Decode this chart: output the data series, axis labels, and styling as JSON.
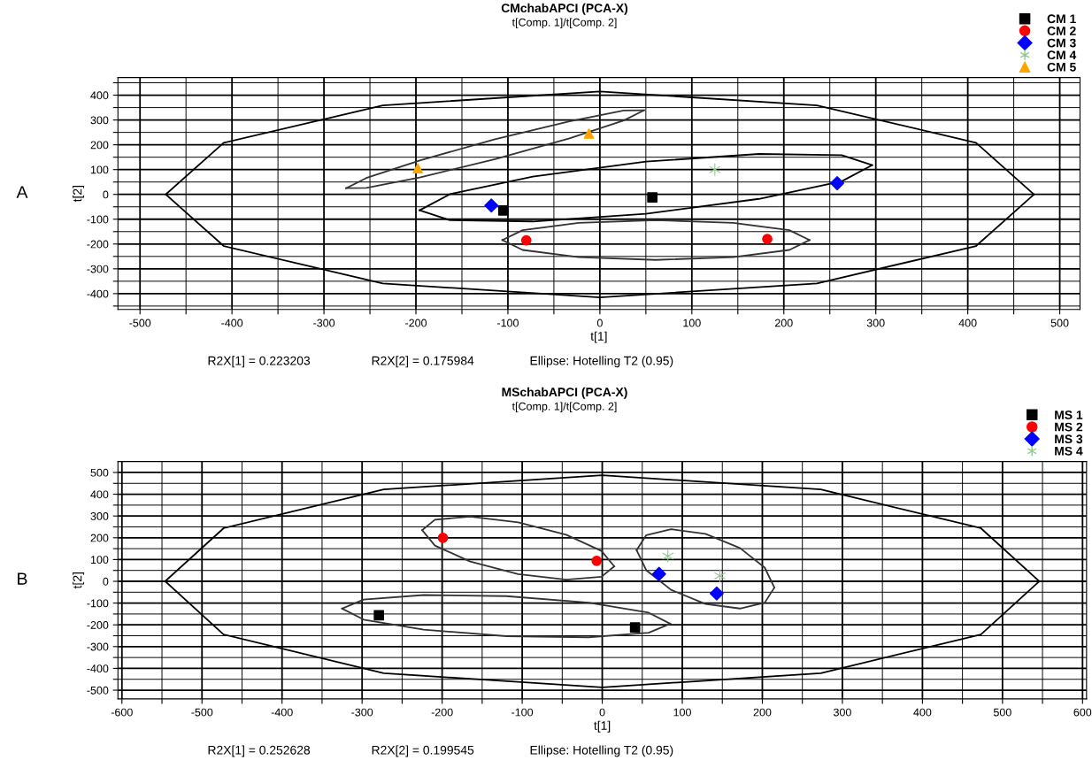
{
  "chart_data": [
    {
      "type": "scatter",
      "title": "CMchabAPCI (PCA-X)",
      "subtitle": "t[Comp. 1]/t[Comp. 2]",
      "xlabel": "t[1]",
      "ylabel": "t[2]",
      "annotations": [
        "A",
        "R2X[1] = 0.223203",
        "R2X[2] = 0.175984",
        "Ellipse: Hotelling T2 (0.95)"
      ],
      "xlim": [
        -524,
        522
      ],
      "ylim": [
        -464,
        471
      ],
      "xticks": [
        -500,
        -400,
        -300,
        -200,
        -100,
        0,
        100,
        200,
        300,
        400,
        500,
        {
          "value": -450,
          "label": null
        },
        {
          "value": -350,
          "label": null
        },
        {
          "value": -250,
          "label": null
        },
        {
          "value": -150,
          "label": null
        },
        {
          "value": -50,
          "label": null
        },
        {
          "value": 50,
          "label": null
        },
        {
          "value": 150,
          "label": null
        },
        {
          "value": 250,
          "label": null
        },
        {
          "value": 350,
          "label": null
        },
        {
          "value": 450,
          "label": null
        }
      ],
      "yticks": [
        -400,
        -300,
        -200,
        -100,
        0,
        100,
        200,
        300,
        400,
        {
          "value": -450,
          "label": null
        },
        {
          "value": -350,
          "label": null
        },
        {
          "value": -250,
          "label": null
        },
        {
          "value": -150,
          "label": null
        },
        {
          "value": -50,
          "label": null
        },
        {
          "value": 50,
          "label": null
        },
        {
          "value": 150,
          "label": null
        },
        {
          "value": 250,
          "label": null
        },
        {
          "value": 350,
          "label": null
        },
        {
          "value": 450,
          "label": null
        }
      ],
      "grid": true,
      "legend": "top right",
      "series": [
        {
          "name": "CM 1",
          "color": "#000000",
          "marker": "square",
          "x": [
            -105,
            57
          ],
          "values": [
            -65,
            -12
          ]
        },
        {
          "name": "CM 2",
          "color": "#ff0000",
          "marker": "circle",
          "x": [
            -80,
            182
          ],
          "values": [
            -185,
            -180
          ]
        },
        {
          "name": "CM 3",
          "color": "#0000ff",
          "marker": "diamond",
          "x": [
            -118,
            258
          ],
          "values": [
            -45,
            45
          ]
        },
        {
          "name": "CM 4",
          "color": "#90c890",
          "marker": "cross",
          "x": [
            125
          ],
          "values": [
            100
          ]
        },
        {
          "name": "CM 5",
          "color": "#ffa500",
          "marker": "triangle",
          "x": [
            -198,
            -12
          ],
          "values": [
            105,
            245
          ]
        },
        {
          "type": "line",
          "color": "#000000",
          "x": [
            -472,
            -409,
            -236,
            0,
            236,
            409,
            472
          ],
          "values": [
            0,
            208,
            359,
            415,
            359,
            208,
            0
          ]
        },
        {
          "type": "line",
          "color": "#000000",
          "x": [
            -472,
            -409,
            -236,
            0,
            236,
            409,
            472
          ],
          "values": [
            0,
            -208,
            -359,
            -415,
            -359,
            -208,
            0
          ]
        },
        {
          "type": "line",
          "color": "#333333",
          "x": [
            -276,
            -254,
            -195,
            -114,
            -33,
            26,
            48
          ],
          "values": [
            25,
            66,
            138,
            222,
            295,
            338,
            339
          ]
        },
        {
          "type": "line",
          "color": "#333333",
          "x": [
            -276,
            -254,
            -195,
            -114,
            -33,
            26,
            48
          ],
          "values": [
            25,
            26,
            69,
            142,
            226,
            298,
            339
          ]
        },
        {
          "type": "line",
          "color": "#000000",
          "x": [
            -196,
            -163,
            -73,
            50,
            173,
            263,
            296
          ],
          "values": [
            -64,
            1,
            72,
            132,
            163,
            158,
            118
          ]
        },
        {
          "type": "line",
          "color": "#000000",
          "x": [
            -196,
            -163,
            -73,
            50,
            173,
            263,
            296
          ],
          "values": [
            -64,
            -104,
            -109,
            -78,
            -18,
            53,
            118
          ]
        },
        {
          "type": "line",
          "color": "#333333",
          "x": [
            -106,
            -84,
            -23,
            61,
            145,
            206,
            228
          ],
          "values": [
            -184,
            -144,
            -115,
            -104,
            -115,
            -144,
            -184
          ]
        },
        {
          "type": "line",
          "color": "#333333",
          "x": [
            -106,
            -84,
            -23,
            61,
            145,
            206,
            228
          ],
          "values": [
            -184,
            -224,
            -253,
            -264,
            -253,
            -224,
            -184
          ]
        }
      ]
    },
    {
      "type": "scatter",
      "title": "MSchabAPCI (PCA-X)",
      "subtitle": "t[Comp. 1]/t[Comp. 2]",
      "xlabel": "t[1]",
      "ylabel": "t[2]",
      "annotations": [
        "B",
        "R2X[1] = 0.252628",
        "R2X[2] = 0.199545",
        "Ellipse: Hotelling T2 (0.95)"
      ],
      "xlim": [
        -605,
        605
      ],
      "ylim": [
        -540,
        550
      ],
      "xticks": [
        -600,
        -500,
        -400,
        -300,
        -200,
        -100,
        0,
        100,
        200,
        300,
        400,
        500,
        600,
        {
          "value": -550,
          "label": null
        },
        {
          "value": -450,
          "label": null
        },
        {
          "value": -350,
          "label": null
        },
        {
          "value": -250,
          "label": null
        },
        {
          "value": -150,
          "label": null
        },
        {
          "value": -50,
          "label": null
        },
        {
          "value": 50,
          "label": null
        },
        {
          "value": 150,
          "label": null
        },
        {
          "value": 250,
          "label": null
        },
        {
          "value": 350,
          "label": null
        },
        {
          "value": 450,
          "label": null
        },
        {
          "value": 550,
          "label": null
        }
      ],
      "yticks": [
        -500,
        -400,
        -300,
        -200,
        -100,
        0,
        100,
        200,
        300,
        400,
        500,
        {
          "value": -450,
          "label": null
        },
        {
          "value": -350,
          "label": null
        },
        {
          "value": -250,
          "label": null
        },
        {
          "value": -150,
          "label": null
        },
        {
          "value": -50,
          "label": null
        },
        {
          "value": 50,
          "label": null
        },
        {
          "value": 150,
          "label": null
        },
        {
          "value": 250,
          "label": null
        },
        {
          "value": 350,
          "label": null
        },
        {
          "value": 450,
          "label": null
        }
      ],
      "grid": true,
      "legend": "top right",
      "series": [
        {
          "name": "MS 1",
          "color": "#000000",
          "marker": "square",
          "x": [
            -279,
            41
          ],
          "values": [
            -156,
            -212
          ]
        },
        {
          "name": "MS 2",
          "color": "#ff0000",
          "marker": "circle",
          "x": [
            -199,
            -7
          ],
          "values": [
            200,
            94
          ]
        },
        {
          "name": "MS 3",
          "color": "#0000ff",
          "marker": "diamond",
          "x": [
            71,
            143
          ],
          "values": [
            34,
            -56
          ]
        },
        {
          "name": "MS 4",
          "color": "#90c890",
          "marker": "cross",
          "x": [
            82,
            147
          ],
          "values": [
            116,
            25
          ]
        },
        {
          "type": "line",
          "color": "#000000",
          "x": [
            -546,
            -473,
            -273,
            0,
            273,
            473,
            546
          ],
          "values": [
            0,
            244,
            422,
            487,
            422,
            244,
            0
          ]
        },
        {
          "type": "line",
          "color": "#000000",
          "x": [
            -546,
            -473,
            -273,
            0,
            273,
            473,
            546
          ],
          "values": [
            0,
            -244,
            -422,
            -487,
            -422,
            -244,
            0
          ]
        },
        {
          "type": "line",
          "color": "#333333",
          "x": [
            -225,
            -209,
            -165,
            -105,
            -45,
            -1,
            15
          ],
          "values": [
            235,
            283,
            297,
            271,
            214,
            140,
            69
          ]
        },
        {
          "type": "line",
          "color": "#333333",
          "x": [
            -225,
            -209,
            -165,
            -105,
            -45,
            -1,
            15
          ],
          "values": [
            235,
            164,
            91,
            33,
            8,
            21,
            69
          ]
        },
        {
          "type": "line",
          "color": "#333333",
          "x": [
            -325,
            -298,
            -223,
            -120,
            -17,
            58,
            85
          ],
          "values": [
            -125,
            -84,
            -63,
            -68,
            -98,
            -144,
            -195
          ]
        },
        {
          "type": "line",
          "color": "#333333",
          "x": [
            -325,
            -298,
            -223,
            -120,
            -17,
            58,
            85
          ],
          "values": [
            -125,
            -176,
            -222,
            -252,
            -257,
            -236,
            -195
          ]
        },
        {
          "type": "line",
          "color": "#333333",
          "x": [
            43,
            55,
            86,
            129,
            172,
            203,
            215
          ],
          "values": [
            143,
            212,
            239,
            218,
            153,
            63,
            -29
          ]
        },
        {
          "type": "line",
          "color": "#333333",
          "x": [
            43,
            55,
            86,
            129,
            172,
            203,
            215
          ],
          "values": [
            143,
            51,
            -39,
            -104,
            -125,
            -98,
            -29
          ]
        }
      ]
    }
  ]
}
